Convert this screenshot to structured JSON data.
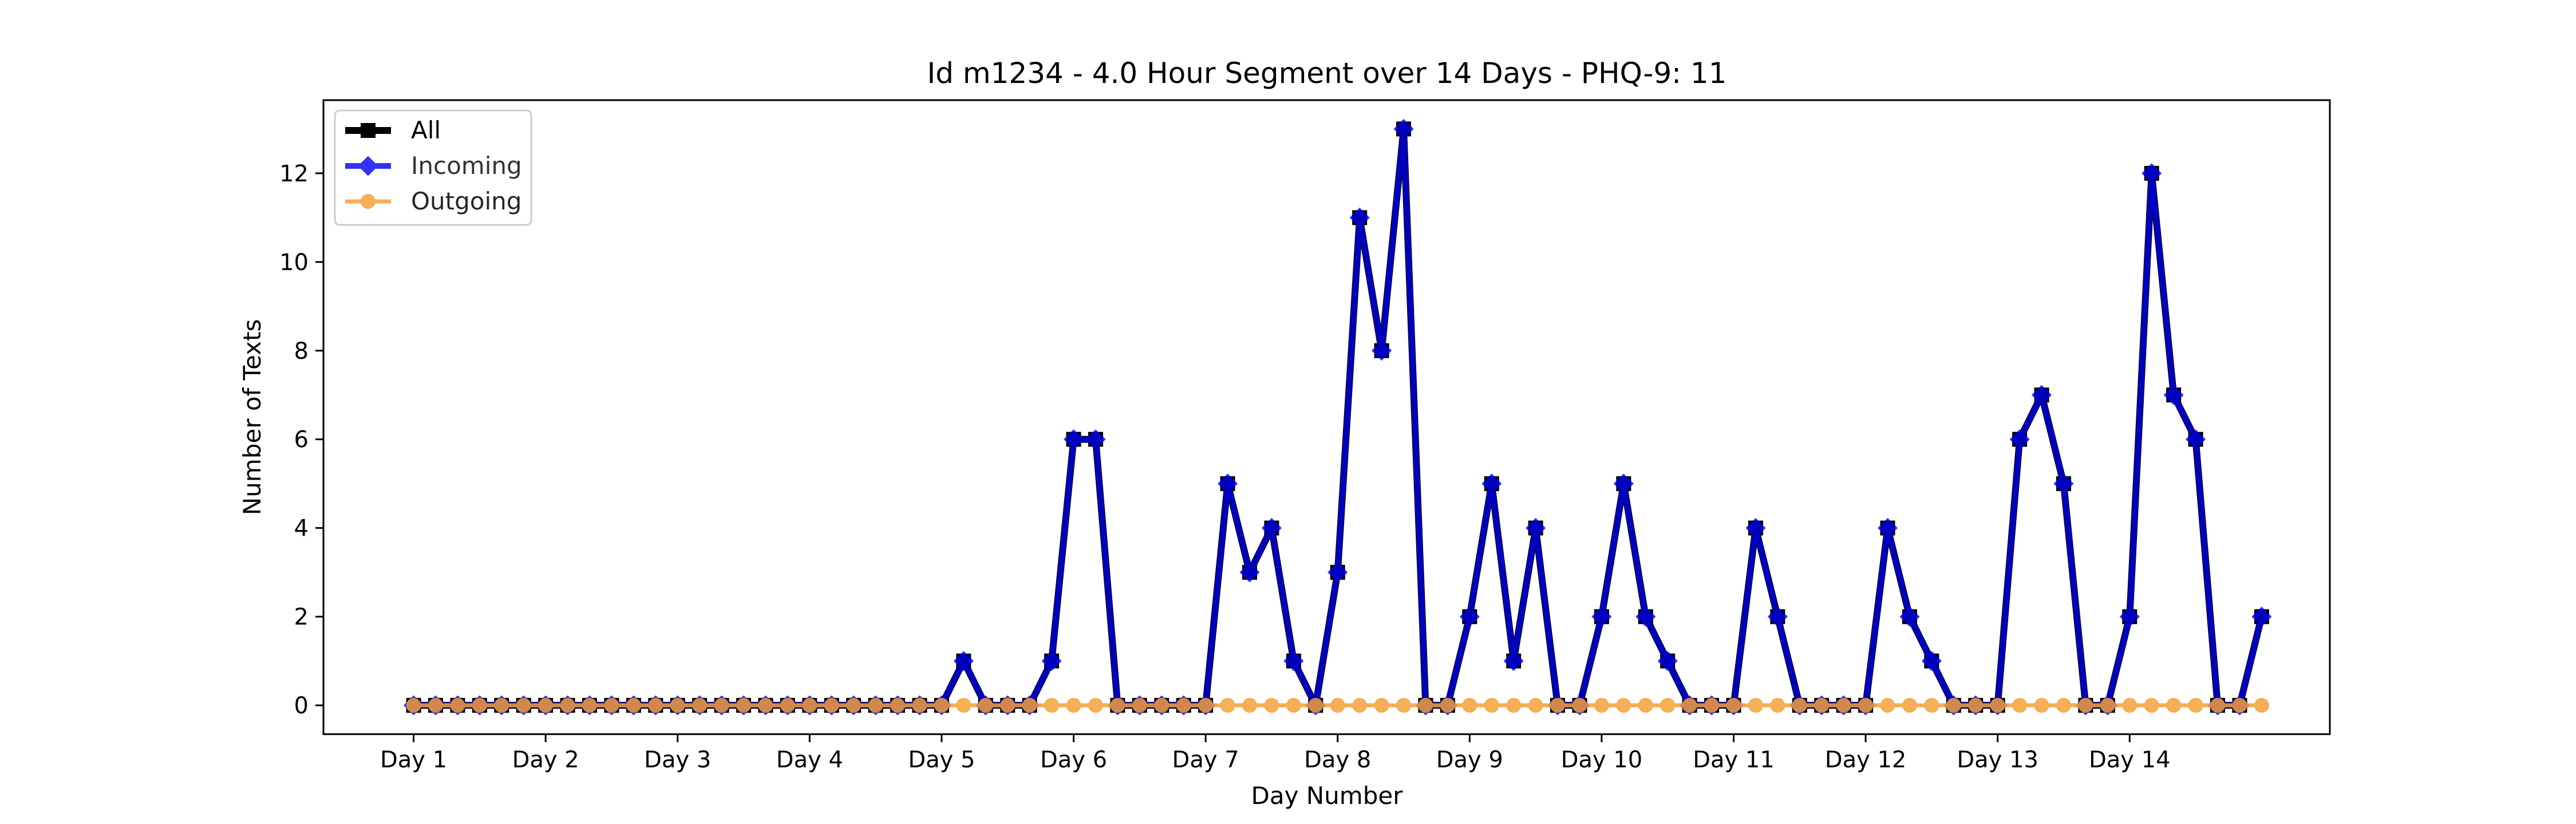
{
  "chart_data": {
    "type": "line",
    "title": "Id m1234 - 4.0 Hour Segment over 14 Days - PHQ-9: 11",
    "xlabel": "Day Number",
    "ylabel": "Number of Texts",
    "x_tick_labels": [
      "Day 1",
      "Day 2",
      "Day 3",
      "Day 4",
      "Day 5",
      "Day 6",
      "Day 7",
      "Day 8",
      "Day 9",
      "Day 10",
      "Day 11",
      "Day 12",
      "Day 13",
      "Day 14"
    ],
    "x_tick_positions": [
      0,
      6,
      12,
      18,
      24,
      30,
      36,
      42,
      48,
      54,
      60,
      66,
      72,
      78
    ],
    "y_ticks": [
      0,
      2,
      4,
      6,
      8,
      10,
      12
    ],
    "xlim": [
      -4.1,
      87.1
    ],
    "ylim": [
      -0.65,
      13.65
    ],
    "grid": false,
    "legend_position": "upper-left",
    "series": [
      {
        "name": "All",
        "color": "#000000",
        "marker": "square",
        "values": [
          0,
          0,
          0,
          0,
          0,
          0,
          0,
          0,
          0,
          0,
          0,
          0,
          0,
          0,
          0,
          0,
          0,
          0,
          0,
          0,
          0,
          0,
          0,
          0,
          0,
          1,
          0,
          0,
          0,
          1,
          6,
          6,
          0,
          0,
          0,
          0,
          0,
          5,
          3,
          4,
          1,
          0,
          3,
          11,
          8,
          13,
          0,
          0,
          2,
          5,
          1,
          4,
          0,
          0,
          2,
          5,
          2,
          1,
          0,
          0,
          0,
          4,
          2,
          0,
          0,
          0,
          0,
          4,
          2,
          1,
          0,
          0,
          0,
          6,
          7,
          5,
          0,
          0,
          2,
          12,
          7,
          6,
          0,
          0,
          2
        ]
      },
      {
        "name": "Incoming",
        "color": "#0000ee",
        "marker": "diamond",
        "values": [
          0,
          0,
          0,
          0,
          0,
          0,
          0,
          0,
          0,
          0,
          0,
          0,
          0,
          0,
          0,
          0,
          0,
          0,
          0,
          0,
          0,
          0,
          0,
          0,
          0,
          1,
          0,
          0,
          0,
          1,
          6,
          6,
          0,
          0,
          0,
          0,
          0,
          5,
          3,
          4,
          1,
          0,
          3,
          11,
          8,
          13,
          0,
          0,
          2,
          5,
          1,
          4,
          0,
          0,
          2,
          5,
          2,
          1,
          0,
          0,
          0,
          4,
          2,
          0,
          0,
          0,
          0,
          4,
          2,
          1,
          0,
          0,
          0,
          6,
          7,
          5,
          0,
          0,
          2,
          12,
          7,
          6,
          0,
          0,
          2
        ]
      },
      {
        "name": "Outgoing",
        "color": "#f5a03a",
        "marker": "circle",
        "values": [
          0,
          0,
          0,
          0,
          0,
          0,
          0,
          0,
          0,
          0,
          0,
          0,
          0,
          0,
          0,
          0,
          0,
          0,
          0,
          0,
          0,
          0,
          0,
          0,
          0,
          0,
          0,
          0,
          0,
          0,
          0,
          0,
          0,
          0,
          0,
          0,
          0,
          0,
          0,
          0,
          0,
          0,
          0,
          0,
          0,
          0,
          0,
          0,
          0,
          0,
          0,
          0,
          0,
          0,
          0,
          0,
          0,
          0,
          0,
          0,
          0,
          0,
          0,
          0,
          0,
          0,
          0,
          0,
          0,
          0,
          0,
          0,
          0,
          0,
          0,
          0,
          0,
          0,
          0,
          0,
          0,
          0,
          0,
          0,
          0
        ]
      }
    ]
  }
}
